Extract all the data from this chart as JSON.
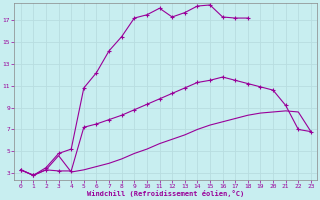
{
  "xlabel": "Windchill (Refroidissement éolien,°C)",
  "bg_color": "#c8eef0",
  "line_color": "#990099",
  "grid_color": "#aacccc",
  "xlim": [
    -0.5,
    23.5
  ],
  "ylim": [
    2.4,
    18.6
  ],
  "xticks": [
    0,
    1,
    2,
    3,
    4,
    5,
    6,
    7,
    8,
    9,
    10,
    11,
    12,
    13,
    14,
    15,
    16,
    17,
    18,
    19,
    20,
    21,
    22,
    23
  ],
  "yticks": [
    3,
    5,
    7,
    9,
    11,
    13,
    15,
    17
  ],
  "curve_upper_x": [
    0,
    1,
    2,
    3,
    4,
    5,
    6,
    7,
    8,
    9,
    10,
    11,
    12,
    13,
    14,
    15,
    16,
    17,
    18
  ],
  "curve_upper_y": [
    3.3,
    2.8,
    3.5,
    4.8,
    5.2,
    10.8,
    12.2,
    14.2,
    15.5,
    17.2,
    17.5,
    18.1,
    17.3,
    17.7,
    18.3,
    18.4,
    17.3,
    17.2,
    17.2
  ],
  "curve_mid_x": [
    0,
    1,
    2,
    3,
    4,
    5,
    6,
    7,
    8,
    9,
    10,
    11,
    12,
    13,
    14,
    15,
    16,
    17,
    18,
    19,
    20,
    21,
    22,
    23
  ],
  "curve_mid_y": [
    3.3,
    2.8,
    3.3,
    3.2,
    3.2,
    7.2,
    7.5,
    7.9,
    8.3,
    8.8,
    9.3,
    9.8,
    10.3,
    10.8,
    11.3,
    11.5,
    11.8,
    11.5,
    11.2,
    10.9,
    10.6,
    9.2,
    7.0,
    6.8
  ],
  "curve_lower_x": [
    0,
    1,
    2,
    3,
    4,
    5,
    6,
    7,
    8,
    9,
    10,
    11,
    12,
    13,
    14,
    15,
    16,
    17,
    18,
    19,
    20,
    21,
    22,
    23
  ],
  "curve_lower_y": [
    3.3,
    2.8,
    3.3,
    4.6,
    3.1,
    3.3,
    3.6,
    3.9,
    4.3,
    4.8,
    5.2,
    5.7,
    6.1,
    6.5,
    7.0,
    7.4,
    7.7,
    8.0,
    8.3,
    8.5,
    8.6,
    8.7,
    8.6,
    6.8
  ],
  "ylabel_ticks": [
    "3",
    "5",
    "7",
    "9",
    "11",
    "13",
    "15",
    "17"
  ]
}
